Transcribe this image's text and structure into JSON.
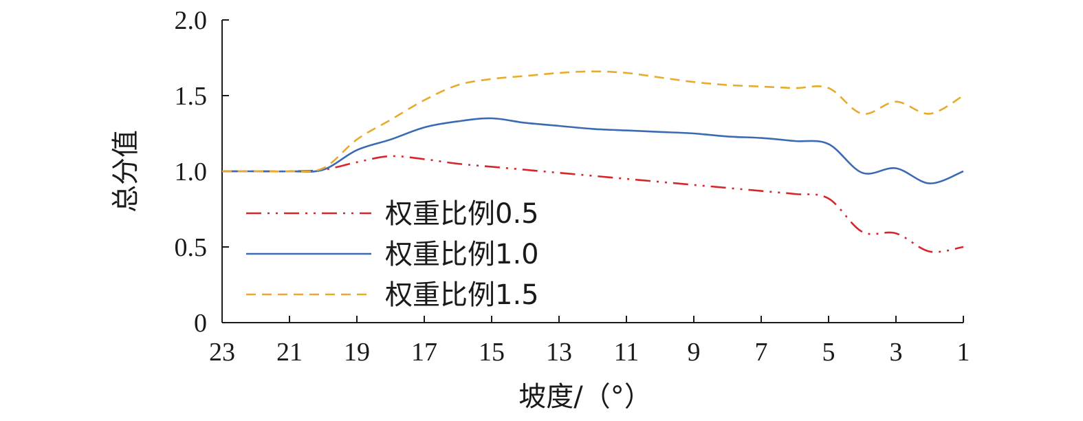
{
  "chart_data": {
    "type": "line",
    "xlabel": "坡度/（°）",
    "ylabel": "总分值",
    "x_reversed": true,
    "xlim": [
      23,
      1
    ],
    "ylim": [
      0,
      2.0
    ],
    "x_ticks": [
      23,
      21,
      19,
      17,
      15,
      13,
      11,
      9,
      7,
      5,
      3,
      1
    ],
    "y_ticks": [
      {
        "value": 0,
        "label": "0"
      },
      {
        "value": 0.5,
        "label": "0.5"
      },
      {
        "value": 1.0,
        "label": "1.0"
      },
      {
        "value": 1.5,
        "label": "1.5"
      },
      {
        "value": 2.0,
        "label": "2.0"
      }
    ],
    "legend_position": "left",
    "series": [
      {
        "name": "权重比例0.5",
        "color": "#d7262b",
        "dash": "dashdot",
        "x": [
          23,
          22,
          21,
          20,
          19,
          18,
          17,
          16,
          15,
          14,
          13,
          12,
          11,
          10,
          9,
          8,
          7,
          6,
          5,
          4,
          3,
          2,
          1
        ],
        "y": [
          1.0,
          1.0,
          1.0,
          1.01,
          1.06,
          1.1,
          1.08,
          1.05,
          1.03,
          1.01,
          0.99,
          0.97,
          0.95,
          0.93,
          0.91,
          0.89,
          0.87,
          0.85,
          0.82,
          0.6,
          0.59,
          0.47,
          0.5
        ]
      },
      {
        "name": "权重比例1.0",
        "color": "#3b6ab4",
        "dash": "solid",
        "x": [
          23,
          22,
          21,
          20,
          19,
          18,
          17,
          16,
          15,
          14,
          13,
          12,
          11,
          10,
          9,
          8,
          7,
          6,
          5,
          4,
          3,
          2,
          1
        ],
        "y": [
          1.0,
          1.0,
          1.0,
          1.01,
          1.14,
          1.21,
          1.29,
          1.33,
          1.35,
          1.32,
          1.3,
          1.28,
          1.27,
          1.26,
          1.25,
          1.23,
          1.22,
          1.2,
          1.18,
          0.99,
          1.02,
          0.92,
          1.0
        ]
      },
      {
        "name": "权重比例1.5",
        "color": "#e9aa2b",
        "dash": "dashed",
        "x": [
          23,
          22,
          21,
          20,
          19,
          18,
          17,
          16,
          15,
          14,
          13,
          12,
          11,
          10,
          9,
          8,
          7,
          6,
          5,
          4,
          3,
          2,
          1
        ],
        "y": [
          1.0,
          1.0,
          1.0,
          1.02,
          1.21,
          1.34,
          1.47,
          1.57,
          1.61,
          1.63,
          1.65,
          1.66,
          1.65,
          1.62,
          1.59,
          1.57,
          1.56,
          1.55,
          1.55,
          1.38,
          1.46,
          1.38,
          1.5
        ]
      }
    ]
  }
}
